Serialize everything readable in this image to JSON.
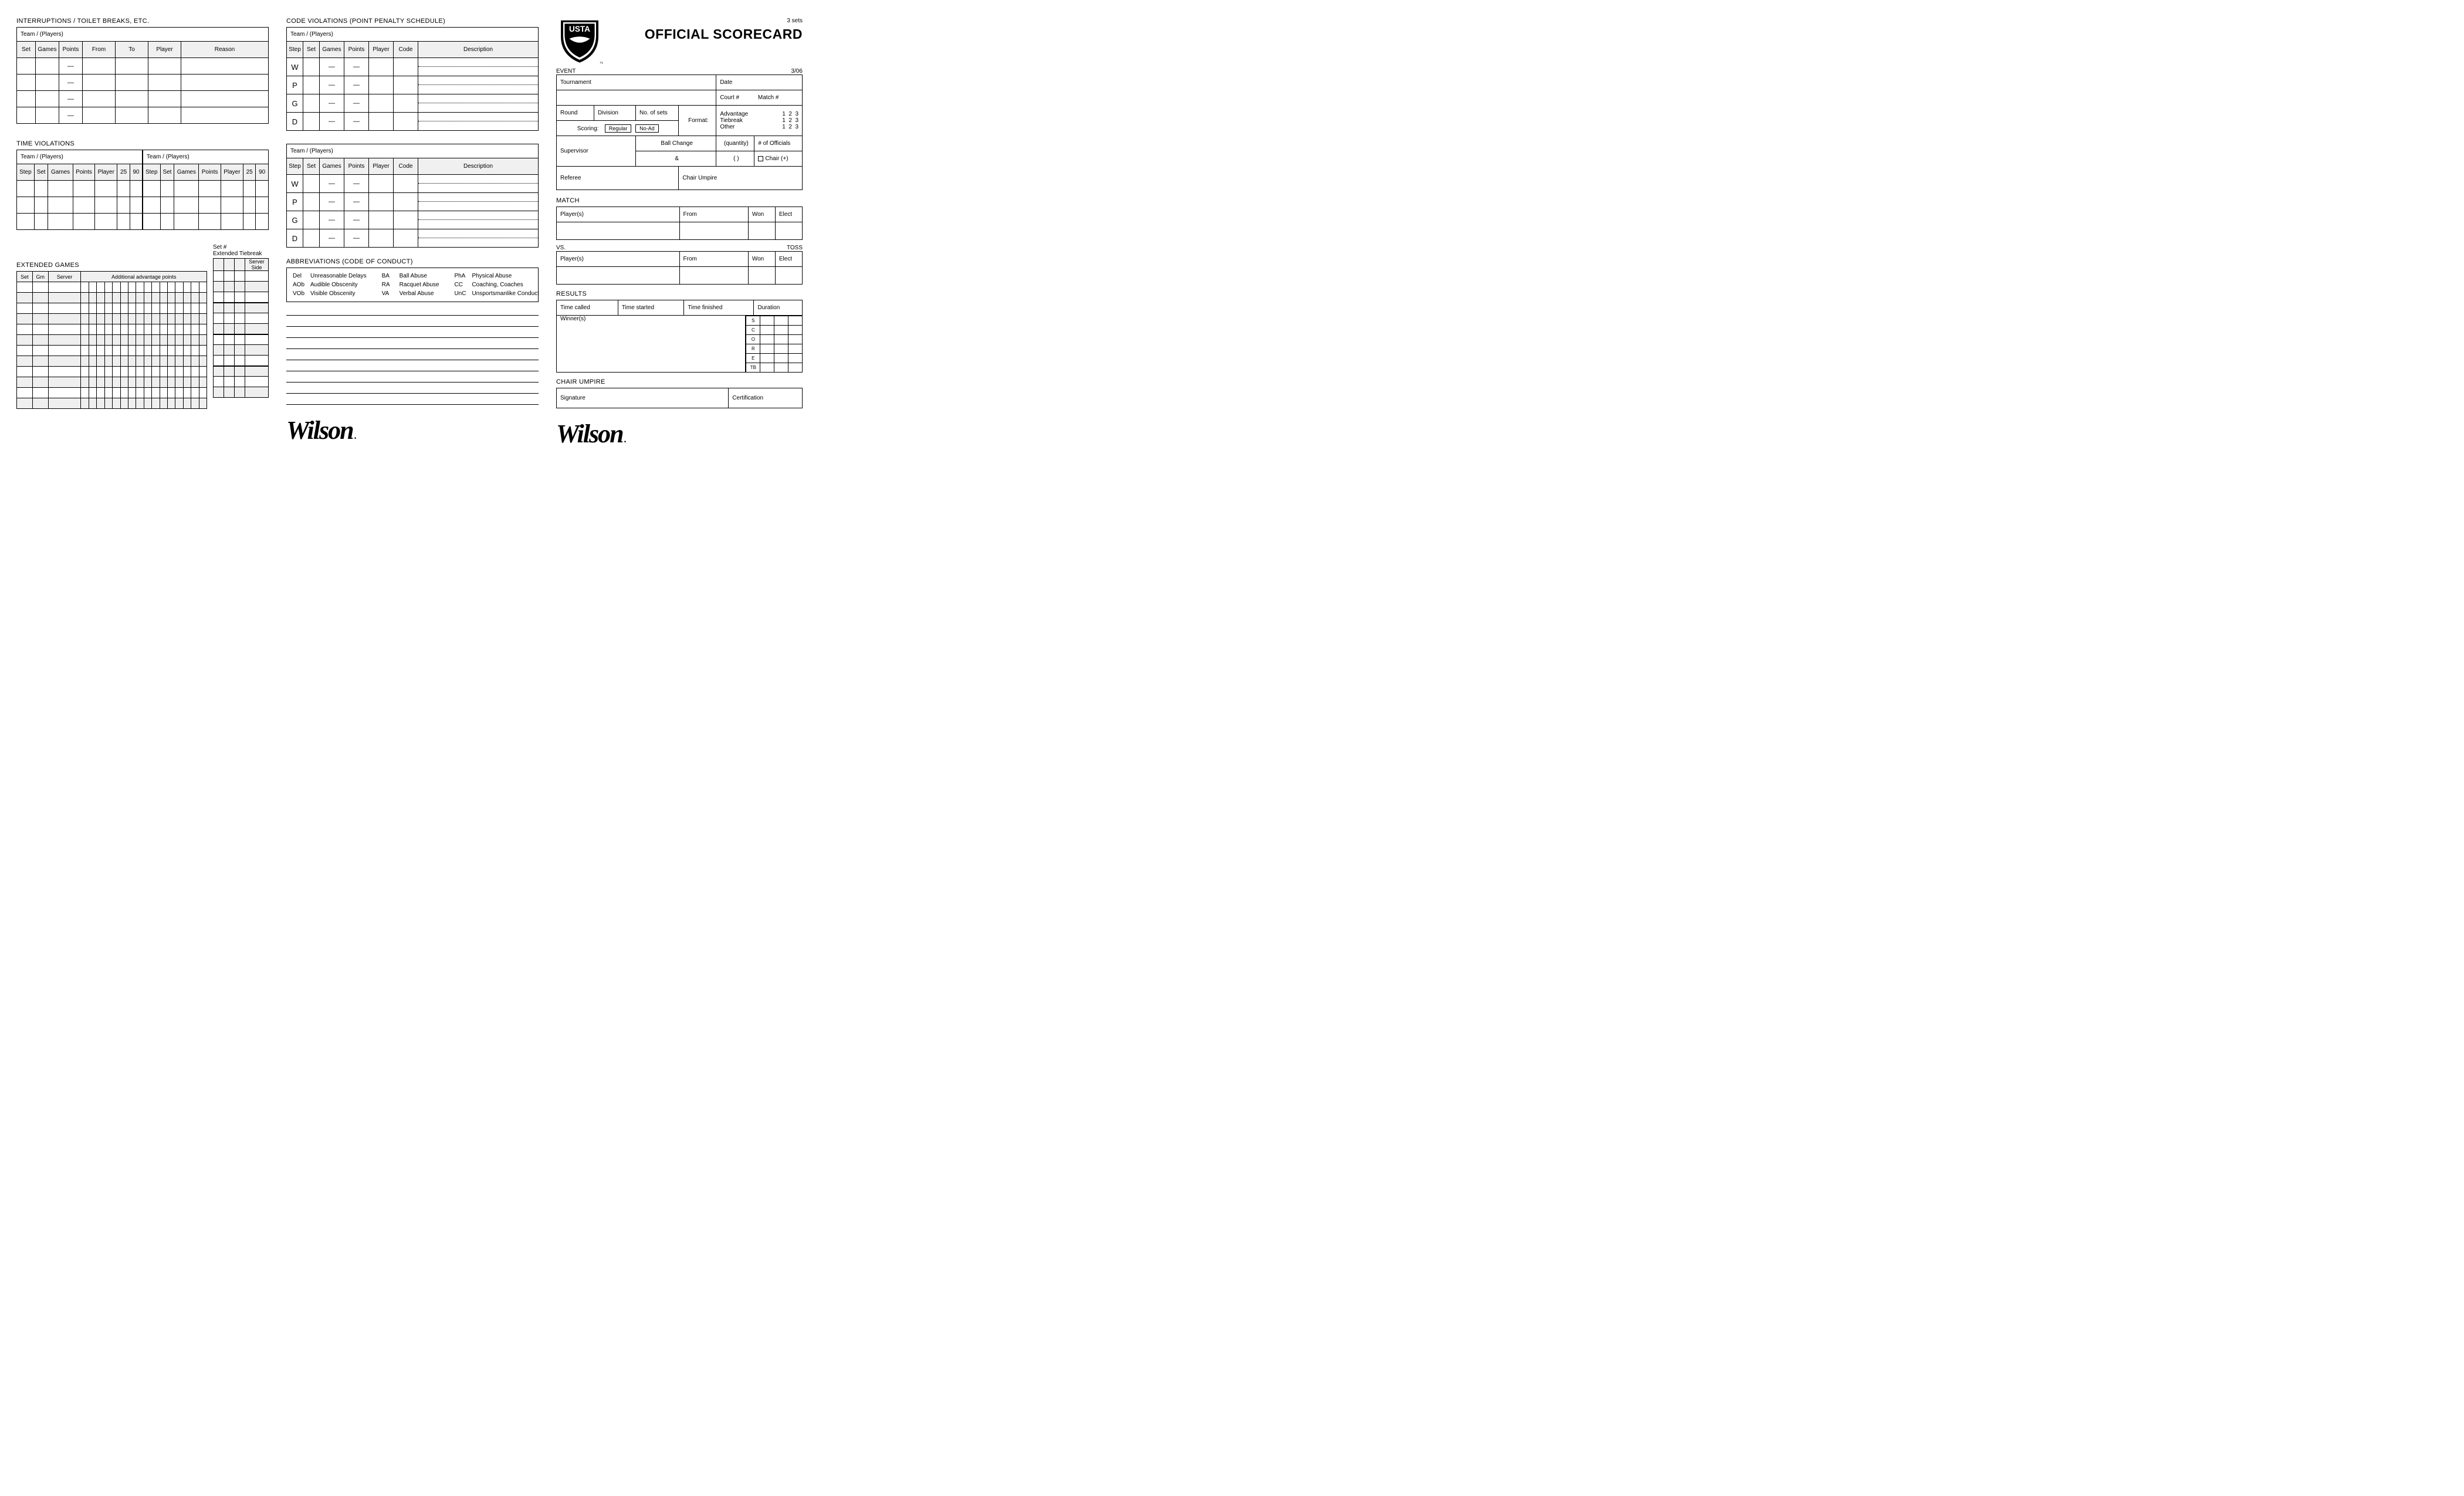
{
  "colors": {
    "bg": "#ffffff",
    "border": "#000000",
    "header_fill": "#f0f0f0",
    "alt_row": "#efefef"
  },
  "typography": {
    "body_fontsize_pt": 8,
    "title_fontsize_pt": 18,
    "font_family": "Helvetica Neue"
  },
  "interruptions": {
    "title": "INTERRUPTIONS / TOILET BREAKS, ETC.",
    "team_label": "Team / (Players)",
    "headers": [
      "Set",
      "Games",
      "Points",
      "From",
      "To",
      "Player",
      "Reason"
    ],
    "blank_rows": 4
  },
  "time_violations": {
    "title": "TIME VIOLATIONS",
    "team_label": "Team / (Players)",
    "headers": [
      "Step",
      "Set",
      "Games",
      "Points",
      "Player",
      "25",
      "90"
    ],
    "blank_rows": 3
  },
  "extended": {
    "title": "EXTENDED GAMES",
    "left_headers": [
      "Set",
      "Gm",
      "Server",
      "Additional advantage points"
    ],
    "right_top1": "Set #",
    "right_top2": "Extended Tiebreak",
    "server_side": "Server Side",
    "rows": 12
  },
  "code_violations": {
    "title": "CODE VIOLATIONS (POINT PENALTY SCHEDULE)",
    "team_label": "Team / (Players)",
    "headers": [
      "Step",
      "Set",
      "Games",
      "Points",
      "Player",
      "Code",
      "Description"
    ],
    "steps": [
      "W",
      "P",
      "G",
      "D"
    ]
  },
  "abbr": {
    "title": "ABBREVIATIONS (CODE OF CONDUCT)",
    "c1": [
      [
        "Del",
        "Unreasonable Delays"
      ],
      [
        "AOb",
        "Audible Obscenity"
      ],
      [
        "VOb",
        "Visible Obscenity"
      ]
    ],
    "c2": [
      [
        "BA",
        "Ball Abuse"
      ],
      [
        "RA",
        "Racquet Abuse"
      ],
      [
        "VA",
        "Verbal Abuse"
      ]
    ],
    "c3": [
      [
        "PhA",
        "Physical Abuse"
      ],
      [
        "CC",
        "Coaching, Coaches"
      ],
      [
        "UnC",
        "Unsportsmanlike Conduct"
      ]
    ]
  },
  "note_lines": 9,
  "right": {
    "sets_note": "3 sets",
    "main_title": "OFFICIAL SCORECARD",
    "event_label": "EVENT",
    "event_date": "3/06",
    "ev": {
      "tournament": "Tournament",
      "date": "Date",
      "court": "Court #",
      "match": "Match #",
      "round": "Round",
      "division": "Division",
      "no_sets": "No. of sets",
      "format": "Format:",
      "scoring": "Scoring:",
      "regular": "Regular",
      "noad": "No-Ad",
      "advantage": "Advantage",
      "tiebreak": "Tiebreak",
      "other": "Other",
      "nums": [
        "1",
        "2",
        "3"
      ],
      "supervisor": "Supervisor",
      "ballchange": "Ball Change",
      "amp": "&",
      "quantity": "(quantity)",
      "parens": "(        )",
      "officials": "# of Officials",
      "chairplus": "Chair (+)",
      "referee": "Referee",
      "chair_umpire": "Chair Umpire"
    },
    "match_label": "MATCH",
    "vs_label": "VS.",
    "toss": "TOSS",
    "match_headers": [
      "Player(s)",
      "From",
      "Won",
      "Elect"
    ],
    "results_label": "RESULTS",
    "results_headers": [
      "Time called",
      "Time started",
      "Time finished",
      "Duration"
    ],
    "winners": "Winner(s)",
    "score_letters": [
      "S",
      "C",
      "O",
      "R",
      "E",
      "TB"
    ],
    "chair_umpire_label": "CHAIR UMPIRE",
    "signature": "Signature",
    "certification": "Certification"
  },
  "brand": "Wilson"
}
